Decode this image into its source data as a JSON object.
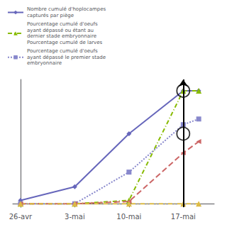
{
  "chart_data": {
    "type": "line",
    "x": [
      0,
      7,
      14,
      21,
      23
    ],
    "xlim": [
      -1,
      25
    ],
    "xticks": [
      {
        "value": 0,
        "label": "26-avr"
      },
      {
        "value": 7,
        "label": "3-mai"
      },
      {
        "value": 14,
        "label": "10-mai"
      },
      {
        "value": 21,
        "label": "17-mai"
      }
    ],
    "ylim": [
      -3,
      110
    ],
    "tick_labels": "x",
    "grid": false,
    "legend": "upper left",
    "series": [
      {
        "name": "Nombre cumulé d'hoplocampes\ncapturés par piège",
        "color": "#6666bb",
        "marker": "diamond",
        "line_style": "solid",
        "values": [
          3,
          15,
          62,
          100,
          100
        ]
      },
      {
        "name": "Pourcentage cumulé d'oeufs\nayant dépassé ou étant au\ndernier stade embryonnaire\nPourcentage cumulé de larves",
        "color": "#88bb00",
        "marker": "triangle_up",
        "line_style": "dashdot",
        "values": [
          0,
          0,
          3,
          100,
          100
        ]
      },
      {
        "name": "Pourcentage cumulé d'oeufs\nayant dépassé le premier stade\nembryonnaire",
        "color": "#8888cc",
        "marker": "square",
        "line_style": "dotted",
        "values": [
          0,
          0,
          28,
          70,
          75
        ]
      },
      {
        "color": "#cc6666",
        "marker": "triangle_left",
        "line_style": "dashed",
        "values": [
          0,
          0,
          2,
          45,
          55
        ]
      },
      {
        "color": "#ddbb44",
        "marker": "triangle_up",
        "line_style": "dashdot",
        "values": [
          0,
          0,
          0,
          0,
          0
        ]
      }
    ],
    "vline": {
      "x": 21,
      "color": "#000000"
    },
    "circles": {
      "color": "#000000",
      "points": [
        [
          21,
          100
        ],
        [
          21,
          62
        ]
      ]
    }
  }
}
